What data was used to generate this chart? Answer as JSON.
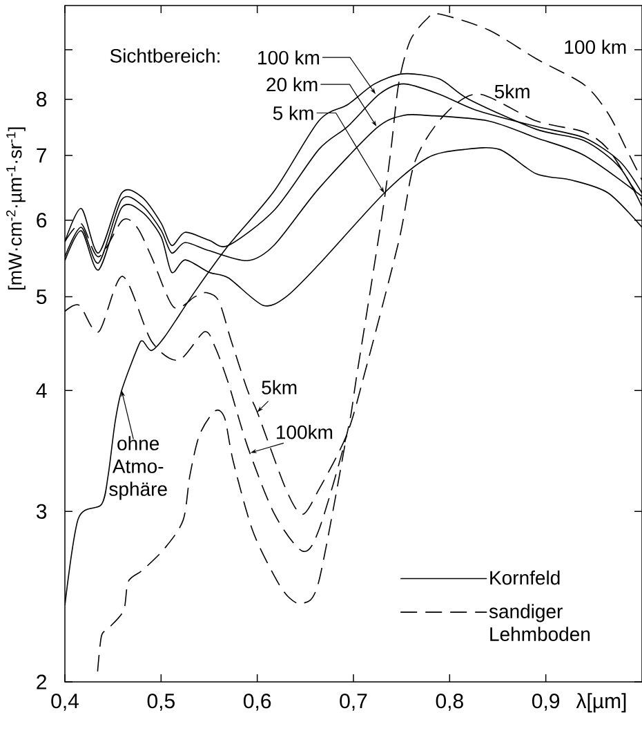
{
  "chart_data": {
    "type": "line",
    "xlabel": "λ[µm]",
    "ylabel": "[mW·cm$^{-2}$·µm$^{-1}$·sr$^{-1}$]",
    "xlim": [
      0.4,
      1.0
    ],
    "ylim": [
      2,
      10
    ],
    "log": "y",
    "xticks": [
      {
        "value": 0.4,
        "label": "0,4"
      },
      {
        "value": 0.5,
        "label": "0,5"
      },
      {
        "value": 0.6,
        "label": "0,6"
      },
      {
        "value": 0.7,
        "label": "0,7"
      },
      {
        "value": 0.8,
        "label": "0,8"
      },
      {
        "value": 0.9,
        "label": "0,9"
      }
    ],
    "yticks": [
      2,
      3,
      4,
      5,
      6,
      7,
      8,
      {
        "value": 9,
        "label": null
      }
    ],
    "legend": "bottom right",
    "series": [
      {
        "name": "Kornfeld",
        "color": "#000000",
        "line_style": "solid",
        "x": [
          0.4,
          0.417,
          0.435,
          0.459,
          0.48,
          0.5,
          0.511,
          0.525,
          0.55,
          0.57,
          0.618,
          0.664,
          0.694,
          0.727,
          0.752,
          0.789,
          0.827,
          0.89,
          0.94,
          0.977,
          1.0
        ],
        "values": [
          5.7,
          6.17,
          5.55,
          6.4,
          6.34,
          5.96,
          5.65,
          5.83,
          5.72,
          5.65,
          6.15,
          7.1,
          7.5,
          8.1,
          8.3,
          8.1,
          7.8,
          7.5,
          7.3,
          6.9,
          6.4
        ]
      },
      {
        "color": "#000000",
        "line_style": "solid",
        "x": [
          0.4,
          0.417,
          0.435,
          0.459,
          0.48,
          0.5,
          0.511,
          0.525,
          0.55,
          0.59,
          0.618,
          0.664,
          0.724,
          0.752,
          0.777,
          0.84,
          0.89,
          0.94,
          1.0
        ],
        "values": [
          5.5,
          5.9,
          5.42,
          6.3,
          6.22,
          5.86,
          5.55,
          5.69,
          5.58,
          5.45,
          5.66,
          6.47,
          7.47,
          7.7,
          7.7,
          7.6,
          7.3,
          7.0,
          6.35
        ]
      },
      {
        "color": "#000000",
        "line_style": "solid",
        "x": [
          0.4,
          0.417,
          0.435,
          0.459,
          0.48,
          0.5,
          0.511,
          0.525,
          0.55,
          0.57,
          0.606,
          0.63,
          0.664,
          0.732,
          0.777,
          0.815,
          0.852,
          0.89,
          0.927,
          0.965,
          1.0
        ],
        "values": [
          5.45,
          5.85,
          5.33,
          6.18,
          6.12,
          5.77,
          5.3,
          5.46,
          5.3,
          5.23,
          4.9,
          5.0,
          5.4,
          6.4,
          6.96,
          7.1,
          7.1,
          6.7,
          6.6,
          6.4,
          5.9
        ]
      },
      {
        "color": "#000000",
        "line_style": "solid",
        "x": [
          0.4,
          0.414,
          0.438,
          0.445,
          0.452,
          0.459,
          0.476,
          0.481,
          0.49,
          0.504,
          0.535,
          0.57,
          0.618,
          0.664,
          0.694,
          0.722,
          0.752,
          0.789,
          0.82,
          0.89,
          0.94,
          0.977,
          1.0
        ],
        "values": [
          2.4,
          2.95,
          3.05,
          3.27,
          3.7,
          4.0,
          4.44,
          4.5,
          4.4,
          4.55,
          5.06,
          5.65,
          6.44,
          7.6,
          7.9,
          8.3,
          8.5,
          8.4,
          8.0,
          7.45,
          7.25,
          6.8,
          6.2
        ]
      },
      {
        "name": "sandiger Lehmboden",
        "color": "#000000",
        "line_style": "dashed",
        "x": [
          0.4,
          0.415,
          0.435,
          0.46,
          0.49,
          0.518,
          0.545,
          0.556,
          0.57,
          0.59,
          0.618,
          0.647,
          0.664,
          0.693,
          0.704,
          0.729,
          0.739,
          0.747,
          0.759,
          0.777,
          0.789,
          0.84,
          0.89,
          0.94,
          0.965,
          0.984,
          1.0
        ],
        "values": [
          4.83,
          4.9,
          4.6,
          5.25,
          4.5,
          4.3,
          4.6,
          4.44,
          4.07,
          3.5,
          2.98,
          2.73,
          2.87,
          3.6,
          4.18,
          6.0,
          7.1,
          8.3,
          9.2,
          9.7,
          9.8,
          9.44,
          8.81,
          8.28,
          7.73,
          7.1,
          6.6
        ]
      },
      {
        "color": "#000000",
        "line_style": "dashed",
        "x": [
          0.4,
          0.417,
          0.435,
          0.46,
          0.475,
          0.49,
          0.513,
          0.535,
          0.547,
          0.56,
          0.573,
          0.59,
          0.6,
          0.63,
          0.647,
          0.664,
          0.693,
          0.712,
          0.747,
          0.764,
          0.794,
          0.83,
          0.89,
          0.94,
          0.965,
          0.99,
          1.0
        ],
        "values": [
          5.7,
          5.95,
          5.5,
          6.0,
          5.9,
          5.5,
          4.88,
          5.0,
          5.05,
          4.95,
          4.5,
          4.0,
          3.8,
          3.16,
          2.98,
          3.16,
          3.6,
          4.18,
          5.7,
          6.9,
          7.7,
          8.1,
          7.6,
          7.4,
          7.1,
          6.5,
          6.3
        ]
      },
      {
        "color": "#000000",
        "line_style": "dashed",
        "x": [
          0.434,
          0.438,
          0.445,
          0.461,
          0.466,
          0.481,
          0.504,
          0.523,
          0.53,
          0.54,
          0.556,
          0.566,
          0.575,
          0.595,
          0.618,
          0.632,
          0.647,
          0.664,
          0.693
        ],
        "values": [
          2.05,
          2.23,
          2.27,
          2.37,
          2.54,
          2.61,
          2.75,
          2.94,
          3.27,
          3.6,
          3.81,
          3.75,
          3.38,
          2.87,
          2.57,
          2.45,
          2.41,
          2.54,
          3.6
        ]
      }
    ],
    "annotations": [
      "Sichtbereich:",
      {
        "text": "100 km",
        "x": 0.723,
        "y": 8.1
      },
      {
        "text": "20 km",
        "x": 0.724,
        "y": 7.5
      },
      {
        "text": "5 km",
        "x": 0.732,
        "y": 6.4
      },
      "100 km",
      {
        "text": "5km",
        "x": 0.83,
        "y": 8.1
      },
      {
        "text": "5km",
        "x": 0.6,
        "y": 3.8
      },
      {
        "text": "100km",
        "x": 0.593,
        "y": 3.45
      },
      {
        "text": "ohne Atmo-sphäre",
        "x": 0.459,
        "y": 4.0
      }
    ]
  }
}
